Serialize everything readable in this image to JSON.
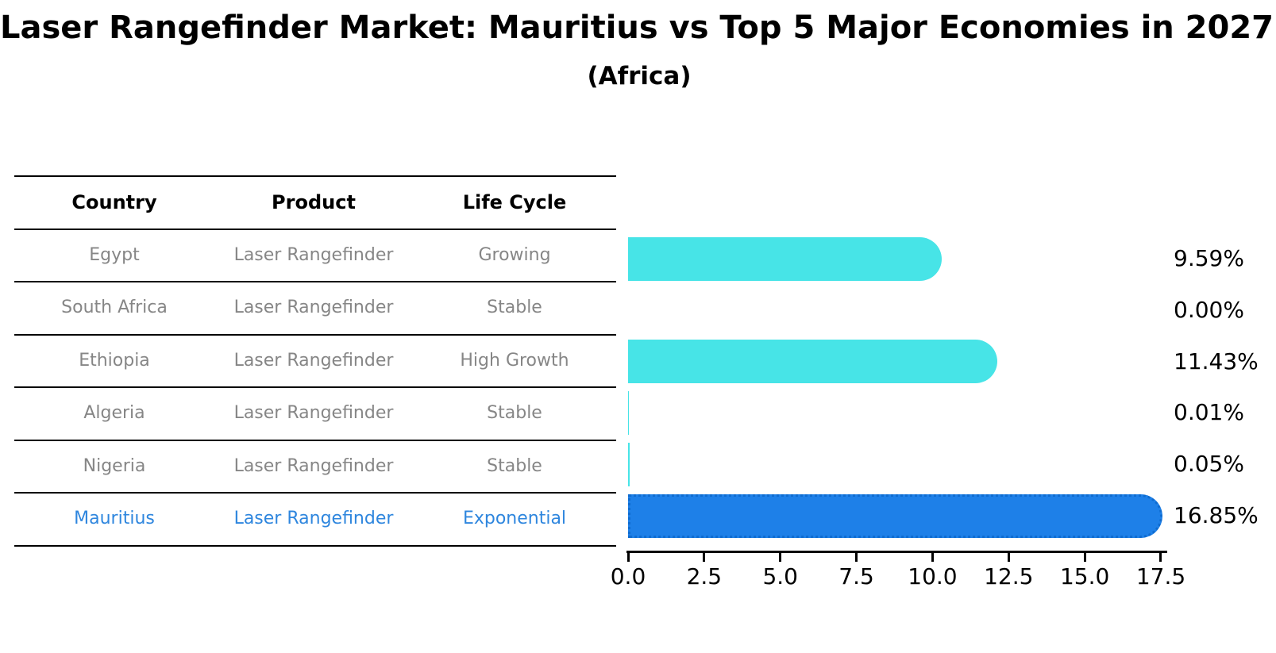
{
  "title": "Laser Rangefinder Market: Mauritius vs Top 5 Major Economies in 2027",
  "subtitle": "(Africa)",
  "table": {
    "columns": [
      "Country",
      "Product",
      "Life Cycle"
    ],
    "rows": [
      {
        "country": "Egypt",
        "product": "Laser Rangefinder",
        "life_cycle": "Growing",
        "highlighted": false
      },
      {
        "country": "South Africa",
        "product": "Laser Rangefinder",
        "life_cycle": "Stable",
        "highlighted": false
      },
      {
        "country": "Ethiopia",
        "product": "Laser Rangefinder",
        "life_cycle": "High Growth",
        "highlighted": false
      },
      {
        "country": "Algeria",
        "product": "Laser Rangefinder",
        "life_cycle": "Stable",
        "highlighted": false
      },
      {
        "country": "Nigeria",
        "product": "Laser Rangefinder",
        "life_cycle": "Stable",
        "highlighted": false
      },
      {
        "country": "Mauritius",
        "product": "Laser Rangefinder",
        "life_cycle": "Exponential",
        "highlighted": true
      }
    ]
  },
  "chart_data": {
    "type": "bar",
    "orientation": "horizontal",
    "title": "Laser Rangefinder Market: Mauritius vs Top 5 Major Economies in 2027",
    "subtitle": "(Africa)",
    "categories": [
      "Egypt",
      "South Africa",
      "Ethiopia",
      "Algeria",
      "Nigeria",
      "Mauritius"
    ],
    "values": [
      9.59,
      0.0,
      11.43,
      0.01,
      0.05,
      16.85
    ],
    "value_labels": [
      "9.59%",
      "0.00%",
      "11.43%",
      "0.01%",
      "0.05%",
      "16.85%"
    ],
    "xlabel": "",
    "ylabel": "",
    "xlim": [
      0,
      17.5
    ],
    "x_ticks": [
      "0.0",
      "2.5",
      "5.0",
      "7.5",
      "10.0",
      "12.5",
      "15.0",
      "17.5"
    ],
    "grid": false,
    "legend": "none",
    "highlight_index": 5
  },
  "colors": {
    "bar_default": "#47E4E7",
    "bar_highlight": "#1E80E8",
    "highlight_text": "#2E86DE",
    "table_text": "#868686",
    "axis": "#000000"
  }
}
